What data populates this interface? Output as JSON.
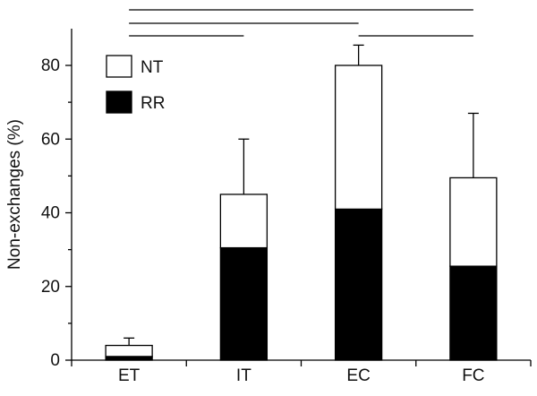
{
  "chart_data": {
    "type": "bar",
    "stacked": true,
    "categories": [
      "ET",
      "IT",
      "EC",
      "FC"
    ],
    "series": [
      {
        "name": "RR",
        "values": [
          1,
          30.5,
          41,
          25.5
        ]
      },
      {
        "name": "NT",
        "values": [
          3,
          14.5,
          39,
          24
        ]
      }
    ],
    "totals": [
      4,
      45,
      80,
      49.5
    ],
    "error_upper": [
      6,
      60,
      85.5,
      67
    ],
    "ylabel": "Non-exchanges (%)",
    "xlabel": "",
    "ylim": [
      0,
      90
    ],
    "yticks": [
      0,
      20,
      40,
      60,
      80
    ],
    "legend": [
      "NT",
      "RR"
    ],
    "legend_position": "top-left",
    "grid": false,
    "significance_brackets": [
      {
        "from": "ET",
        "to": "FC"
      },
      {
        "from": "ET",
        "to": "EC"
      },
      {
        "from": "ET",
        "to": "IT"
      },
      {
        "from": "EC",
        "to": "FC"
      }
    ],
    "colors": {
      "RR": "#000000",
      "NT": "#ffffff",
      "axis": "#000000"
    }
  }
}
